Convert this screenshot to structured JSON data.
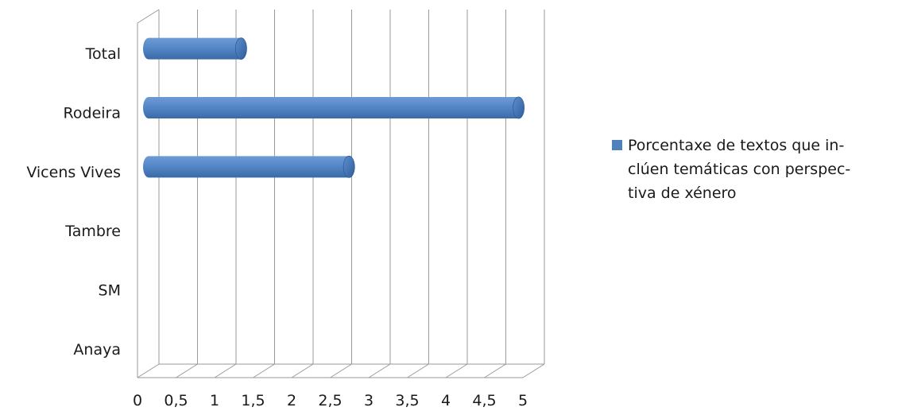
{
  "chart_data": {
    "type": "bar",
    "orientation": "horizontal",
    "categories": [
      "Anaya",
      "SM",
      "Tambre",
      "Vicens Vives",
      "Rodeira",
      "Total"
    ],
    "series": [
      {
        "name": "Porcentaxe de textos que in- clúen temáticas con perspec- tiva de xénero",
        "name_lines": [
          "Porcentaxe de textos que in-",
          "clúen temáticas con perspec-",
          "tiva de xénero"
        ],
        "values": [
          0,
          0,
          0,
          2.6,
          4.8,
          1.2
        ]
      }
    ],
    "xlim": [
      0,
      5
    ],
    "xticks": [
      "0",
      "0,5",
      "1",
      "1,5",
      "2",
      "2,5",
      "3",
      "3,5",
      "4",
      "4,5",
      "5"
    ],
    "grid": true,
    "legend_position": "right",
    "colors": {
      "bar": "#4f81bd",
      "bar_light": "#7ea6dc",
      "bar_dark": "#3a6aa8",
      "grid": "#9a9a9a"
    }
  }
}
